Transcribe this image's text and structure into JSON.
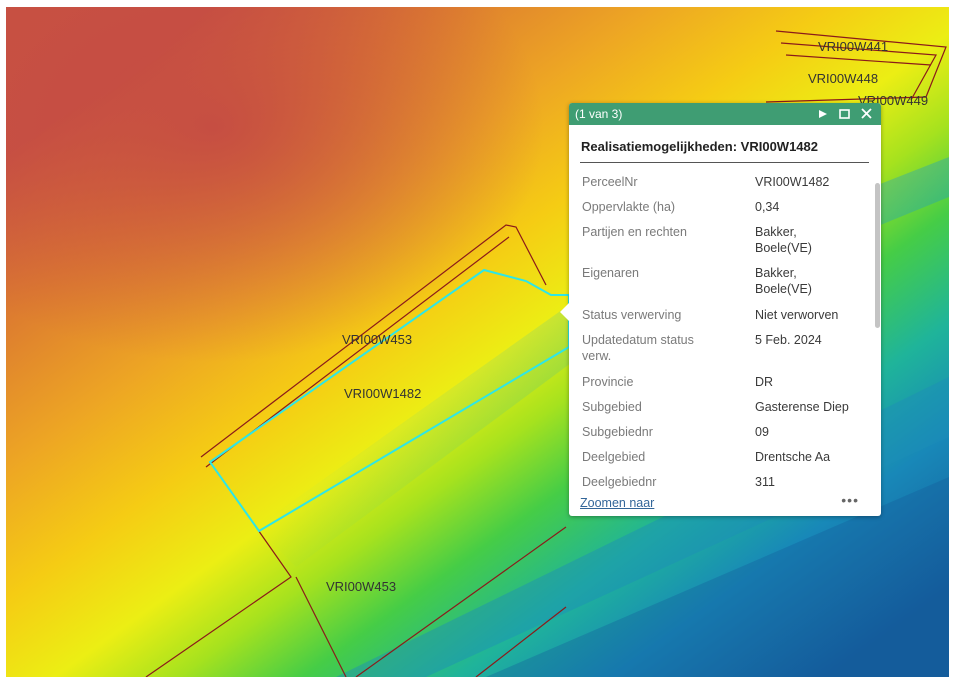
{
  "map": {
    "parcel_labels": [
      {
        "id": "VRI00W441",
        "text": "VRI00W441"
      },
      {
        "id": "VRI00W448",
        "text": "VRI00W448"
      },
      {
        "id": "VRI00W449",
        "text": "VRI00W449"
      },
      {
        "id": "VRI00W453a",
        "text": "VRI00W453"
      },
      {
        "id": "VRI00W1482",
        "text": "VRI00W1482"
      },
      {
        "id": "VRI00W453b",
        "text": "VRI00W453"
      }
    ],
    "colors": {
      "parcel_outline": "#8b1a1a",
      "selected_outline": "#2ee6e6"
    }
  },
  "popup": {
    "count": "(1 van 3)",
    "header_color": "#3f9d73",
    "title": "Realisatiemogelijkheden: VRI00W1482",
    "fields": [
      {
        "key": "PerceelNr",
        "value": "VRI00W1482"
      },
      {
        "key": "Oppervlakte (ha)",
        "value": "0,34"
      },
      {
        "key": "Partijen en rechten",
        "value": "Bakker, Boele(VE)"
      },
      {
        "key": "Eigenaren",
        "value": "Bakker, Boele(VE)"
      },
      {
        "key": "Status verwerving",
        "value": "Niet verworven"
      },
      {
        "key": "Updatedatum status verw.",
        "value": "5 Feb. 2024"
      },
      {
        "key": "Provincie",
        "value": "DR"
      },
      {
        "key": "Subgebied",
        "value": "Gasterense Diep"
      },
      {
        "key": "Subgebiednr",
        "value": "09"
      },
      {
        "key": "Deelgebied",
        "value": "Drentsche Aa"
      },
      {
        "key": "Deelgebiednr",
        "value": "311"
      }
    ],
    "zoom_label": "Zoomen naar",
    "more_label": "•••",
    "icons": {
      "next": "play-triangle-icon",
      "maximize": "maximize-icon",
      "close": "close-icon"
    }
  }
}
